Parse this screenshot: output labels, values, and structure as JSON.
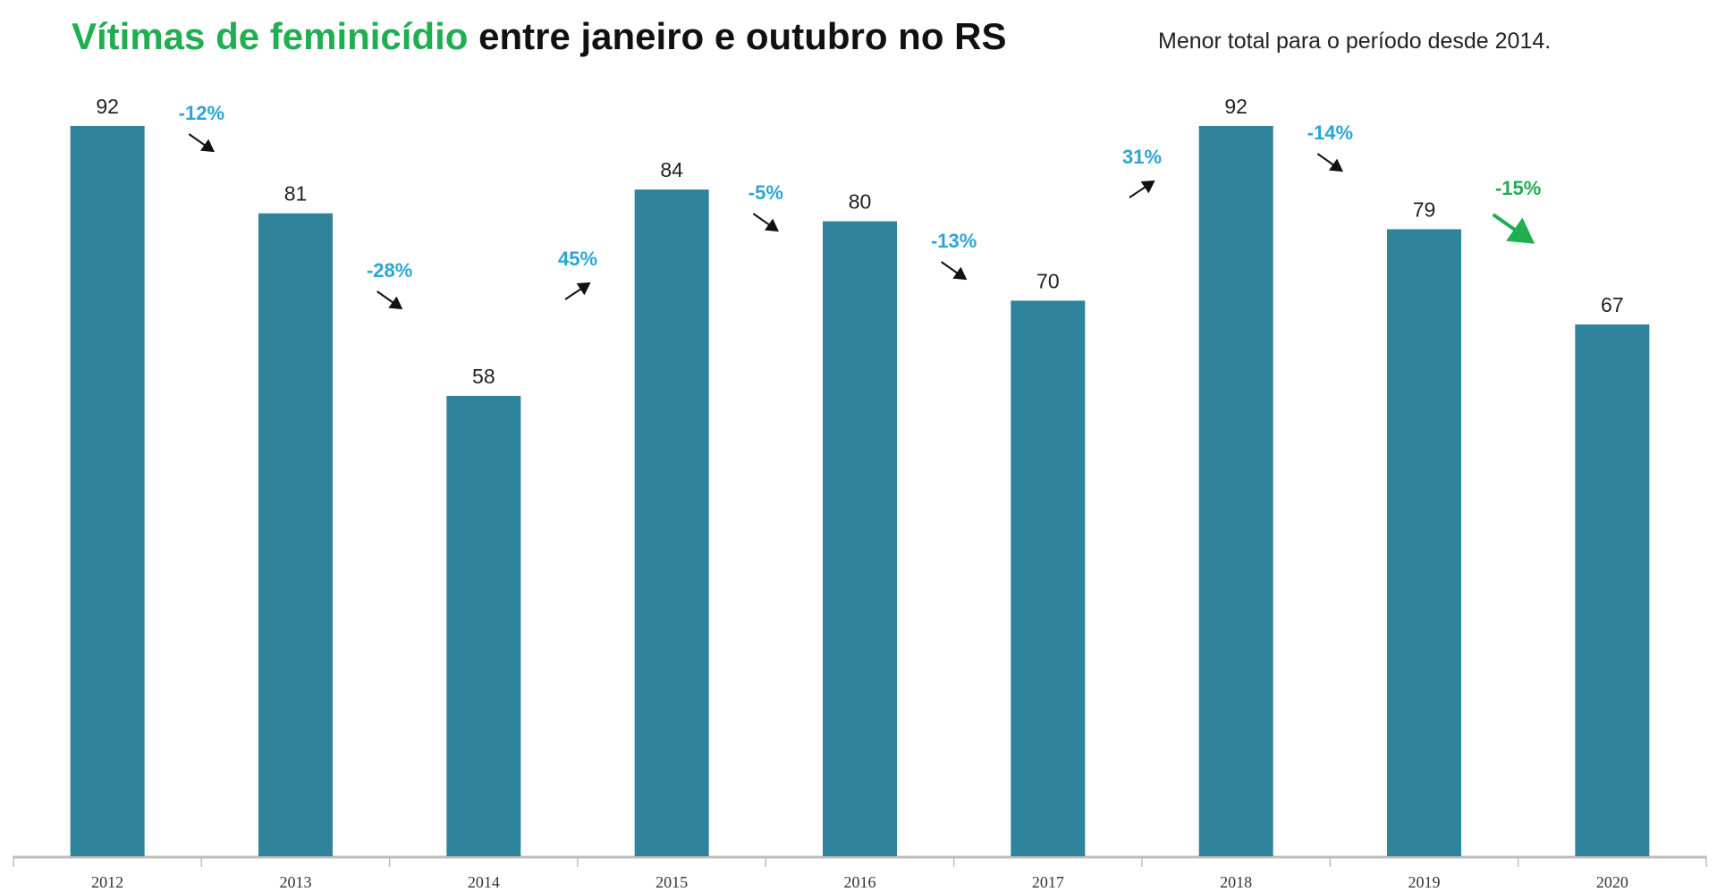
{
  "chart_data": {
    "type": "bar",
    "title_highlight": "Vítimas de feminicídio",
    "title_rest": " entre janeiro e outubro no RS",
    "subtitle": "Menor total para o período desde 2014.",
    "categories": [
      "2012",
      "2013",
      "2014",
      "2015",
      "2016",
      "2017",
      "2018",
      "2019",
      "2020"
    ],
    "values": [
      92,
      81,
      58,
      84,
      80,
      70,
      92,
      79,
      67
    ],
    "changes": [
      "-12%",
      "-28%",
      "45%",
      "-5%",
      "-13%",
      "31%",
      "-14%",
      "-15%"
    ],
    "ylim": [
      0,
      92
    ],
    "grid": false,
    "colors": {
      "bar": "#2f849c",
      "title_highlight": "#1fae50",
      "change": "#2aa6d6",
      "highlight_change": "#1fae50",
      "text": "#111111"
    }
  }
}
